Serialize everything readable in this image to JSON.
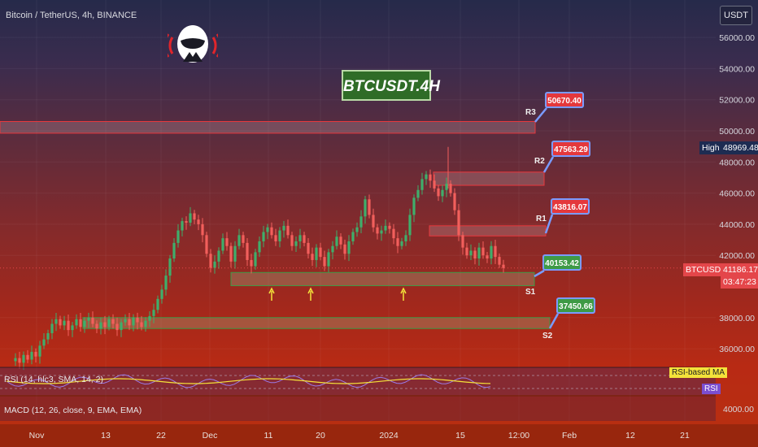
{
  "header": {
    "title": "Bitcoin / TetherUS, 4h, BINANCE",
    "currency": "USDT"
  },
  "badge": "BTCUSDT.4H",
  "tags": {
    "high_label": "High",
    "high_value": "48969.48",
    "symbol": "BTCUSDT",
    "price": "41186.17",
    "countdown": "03:47:23"
  },
  "indicators": {
    "rsi_label": "RSI (14, hlc3, SMA, 14, 2)",
    "rsi_ma_tag": "RSI-based MA",
    "rsi_tag": "RSI",
    "macd_label": "MACD (12, 26, close, 9, EMA, EMA)",
    "macd_tick": "4000.00"
  },
  "colors": {
    "resistance": "#e8383d",
    "support": "#3e9a45",
    "callout_border": "#7a9bff",
    "up_arrow": "#f4e23a"
  },
  "chart_data": {
    "type": "candlestick",
    "title": "Bitcoin / TetherUS, 4h, BINANCE",
    "y_axis": {
      "ticks": [
        "56000.00",
        "54000.00",
        "52000.00",
        "50000.00",
        "48000.00",
        "46000.00",
        "44000.00",
        "42000.00",
        "38000.00",
        "36000.00"
      ],
      "range": [
        35000,
        57000
      ]
    },
    "x_axis": {
      "ticks": [
        "Nov",
        "13",
        "22",
        "Dec",
        "11",
        "20",
        "2024",
        "15",
        "12:00",
        "Feb",
        "12",
        "21"
      ]
    },
    "levels": [
      {
        "name": "R3",
        "value": "50670.40",
        "zone": [
          49850,
          50600
        ],
        "kind": "resistance"
      },
      {
        "name": "R2",
        "value": "47563.29",
        "zone": [
          46500,
          47350
        ],
        "kind": "resistance"
      },
      {
        "name": "R1",
        "value": "43816.07",
        "zone": [
          43250,
          43900
        ],
        "kind": "resistance"
      },
      {
        "name": "S1",
        "value": "40153.42",
        "zone": [
          40050,
          40900
        ],
        "kind": "support"
      },
      {
        "name": "S2",
        "value": "37450.66",
        "zone": [
          37300,
          38000
        ],
        "kind": "support"
      }
    ],
    "close_series": [
      35200,
      35400,
      35100,
      35600,
      35300,
      35800,
      35500,
      36200,
      36600,
      37000,
      37600,
      37900,
      37500,
      37800,
      37200,
      37500,
      37900,
      37400,
      37800,
      38000,
      37600,
      37300,
      37700,
      37400,
      37900,
      37600,
      37200,
      37700,
      37900,
      37500,
      38000,
      37700,
      37400,
      37800,
      38100,
      38500,
      39200,
      39800,
      40700,
      41800,
      42800,
      43600,
      44200,
      44100,
      44700,
      44300,
      44000,
      43300,
      42100,
      41200,
      41600,
      42300,
      43100,
      42600,
      41600,
      42600,
      43300,
      42800,
      41700,
      41300,
      42200,
      42900,
      43500,
      43800,
      43300,
      42900,
      43600,
      43900,
      43300,
      42600,
      42900,
      43300,
      42800,
      42100,
      41700,
      42500,
      41900,
      41300,
      42200,
      42600,
      43200,
      42700,
      42100,
      42900,
      43500,
      43800,
      44500,
      45600,
      44600,
      43800,
      43400,
      43600,
      43900,
      43700,
      43100,
      42600,
      42900,
      43300,
      44600,
      45700,
      46200,
      46900,
      47200,
      46800,
      46300,
      45800,
      46200,
      46600,
      46000,
      44900,
      43300,
      42500,
      42000,
      42300,
      41800,
      42500,
      42000,
      41800,
      42600,
      41900,
      41400,
      41186
    ],
    "support_touches": [
      "11 Dec",
      "20 Dec",
      "2024"
    ]
  }
}
